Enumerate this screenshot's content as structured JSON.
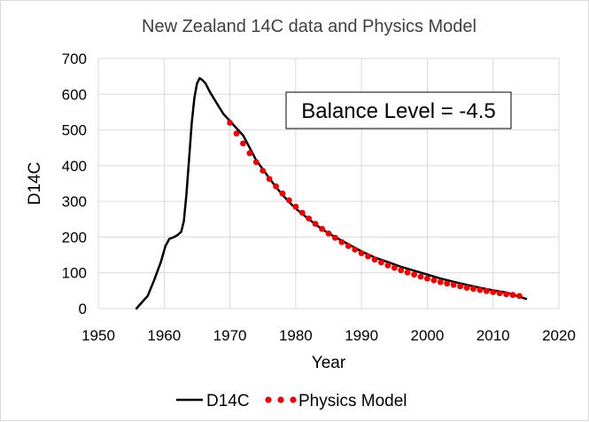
{
  "chart_data": {
    "type": "line",
    "title": "New Zealand 14C data and Physics Model",
    "xlabel": "Year",
    "ylabel": "D14C",
    "xlim": [
      1950,
      2020
    ],
    "ylim": [
      0,
      700
    ],
    "xticks": [
      1950,
      1960,
      1970,
      1980,
      1990,
      2000,
      2010,
      2020
    ],
    "yticks": [
      0,
      100,
      200,
      300,
      400,
      500,
      600,
      700
    ],
    "grid": true,
    "legend": "bottom",
    "annotation": "Balance Level = -4.5",
    "series": [
      {
        "name": "D14C",
        "style": "line",
        "color": "#000000",
        "x": [
          1955.8,
          1956.5,
          1957.5,
          1958.5,
          1959.5,
          1960.2,
          1960.8,
          1961.5,
          1962.0,
          1962.6,
          1963.0,
          1963.4,
          1963.8,
          1964.2,
          1964.6,
          1965.0,
          1965.4,
          1965.8,
          1966.3,
          1967.0,
          1968.0,
          1969.0,
          1970.0,
          1971.0,
          1972.0,
          1973.0,
          1974.0,
          1975.0,
          1976.0,
          1977.0,
          1978.0,
          1979.0,
          1980.0,
          1982.0,
          1984.0,
          1986.0,
          1988.0,
          1990.0,
          1992.0,
          1994.0,
          1996.0,
          1998.0,
          2000.0,
          2002.0,
          2004.0,
          2006.0,
          2008.0,
          2010.0,
          2012.0,
          2014.0,
          2015.0
        ],
        "y": [
          0,
          15,
          35,
          80,
          130,
          175,
          195,
          200,
          205,
          215,
          245,
          320,
          420,
          520,
          590,
          630,
          645,
          640,
          630,
          605,
          575,
          545,
          525,
          505,
          485,
          450,
          415,
          390,
          365,
          340,
          318,
          298,
          280,
          250,
          222,
          200,
          180,
          160,
          143,
          130,
          117,
          106,
          95,
          84,
          75,
          66,
          58,
          51,
          45,
          33,
          27
        ]
      },
      {
        "name": "Physics Model",
        "style": "dots",
        "color": "#ee0000",
        "x": [
          1970,
          1971,
          1972,
          1973,
          1974,
          1975,
          1976,
          1977,
          1978,
          1979,
          1980,
          1981,
          1982,
          1983,
          1984,
          1985,
          1986,
          1987,
          1988,
          1989,
          1990,
          1991,
          1992,
          1993,
          1994,
          1995,
          1996,
          1997,
          1998,
          1999,
          2000,
          2001,
          2002,
          2003,
          2004,
          2005,
          2006,
          2007,
          2008,
          2009,
          2010,
          2011,
          2012,
          2013,
          2014
        ],
        "y": [
          520,
          490,
          462,
          435,
          410,
          386,
          363,
          342,
          322,
          303,
          285,
          268,
          252,
          237,
          223,
          210,
          198,
          186,
          175,
          165,
          155,
          146,
          137,
          129,
          121,
          114,
          107,
          101,
          95,
          89,
          84,
          79,
          74,
          70,
          66,
          62,
          58,
          55,
          52,
          49,
          46,
          43,
          40,
          38,
          35
        ]
      }
    ]
  }
}
